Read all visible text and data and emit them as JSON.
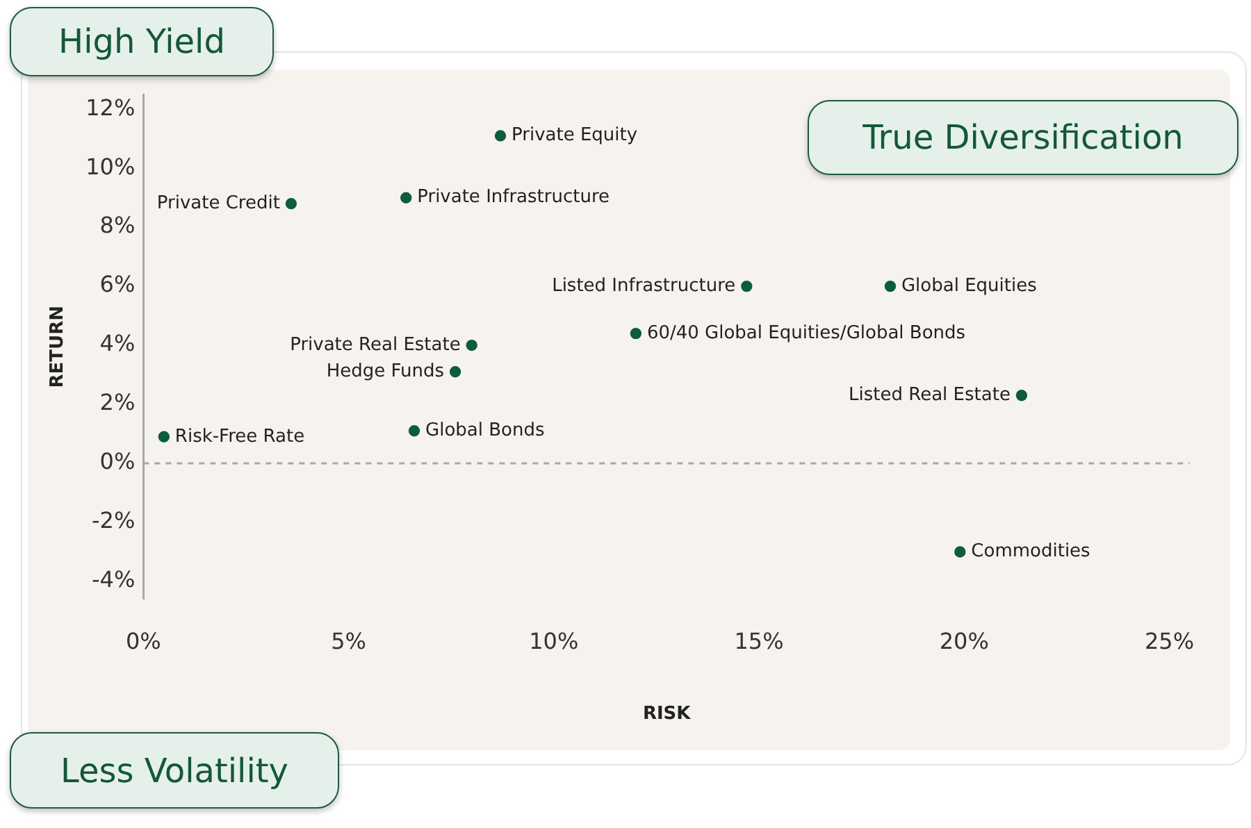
{
  "chart_data": {
    "type": "scatter",
    "xlabel": "RISK",
    "ylabel": "RETURN",
    "annotations": [
      "High Yield",
      "True Diversification",
      "Less Volatility"
    ],
    "xlim": [
      0,
      25.5
    ],
    "ylim": [
      -4.6,
      12.5
    ],
    "xticks": [
      {
        "value": 0,
        "label": "0%"
      },
      {
        "value": 5,
        "label": "5%"
      },
      {
        "value": 10,
        "label": "10%"
      },
      {
        "value": 15,
        "label": "15%"
      },
      {
        "value": 20,
        "label": "20%"
      },
      {
        "value": 25,
        "label": "25%"
      }
    ],
    "yticks": [
      {
        "value": -4,
        "label": "-4%"
      },
      {
        "value": -2,
        "label": "-2%"
      },
      {
        "value": 0,
        "label": "0%"
      },
      {
        "value": 2,
        "label": "2%"
      },
      {
        "value": 4,
        "label": "4%"
      },
      {
        "value": 6,
        "label": "6%"
      },
      {
        "value": 8,
        "label": "8%"
      },
      {
        "value": 10,
        "label": "10%"
      },
      {
        "value": 12,
        "label": "12%"
      }
    ],
    "grid": false,
    "legend": false,
    "marker": "circle",
    "ref_lines": [
      {
        "axis": "y",
        "value": 0,
        "color": "#a8a8a8",
        "line_style": "dashed"
      }
    ],
    "series": [
      {
        "name": "Private Equity",
        "color": "#0d5c3f",
        "x": [
          8.7
        ],
        "values": [
          11.1
        ]
      },
      {
        "name": "Private Credit",
        "color": "#0d5c3f",
        "x": [
          3.6
        ],
        "values": [
          8.8
        ]
      },
      {
        "name": "Private Infrastructure",
        "color": "#0d5c3f",
        "x": [
          6.4
        ],
        "values": [
          9.0
        ]
      },
      {
        "name": "Listed Infrastructure",
        "color": "#0d5c3f",
        "x": [
          14.7
        ],
        "values": [
          6.0
        ]
      },
      {
        "name": "Global Equities",
        "color": "#0d5c3f",
        "x": [
          18.2
        ],
        "values": [
          6.0
        ]
      },
      {
        "name": "60/40 Global Equities/Global Bonds",
        "color": "#0d5c3f",
        "x": [
          12.0
        ],
        "values": [
          4.4
        ]
      },
      {
        "name": "Private Real Estate",
        "color": "#0d5c3f",
        "x": [
          8.0
        ],
        "values": [
          4.0
        ]
      },
      {
        "name": "Hedge Funds",
        "color": "#0d5c3f",
        "x": [
          7.6
        ],
        "values": [
          3.1
        ]
      },
      {
        "name": "Listed Real Estate",
        "color": "#0d5c3f",
        "x": [
          21.4
        ],
        "values": [
          2.3
        ]
      },
      {
        "name": "Risk-Free Rate",
        "color": "#0d5c3f",
        "x": [
          0.5
        ],
        "values": [
          0.9
        ]
      },
      {
        "name": "Global Bonds",
        "color": "#0d5c3f",
        "x": [
          6.6
        ],
        "values": [
          1.1
        ]
      },
      {
        "name": "Commodities",
        "color": "#0d5c3f",
        "x": [
          19.9
        ],
        "values": [
          -3.0
        ]
      }
    ]
  }
}
